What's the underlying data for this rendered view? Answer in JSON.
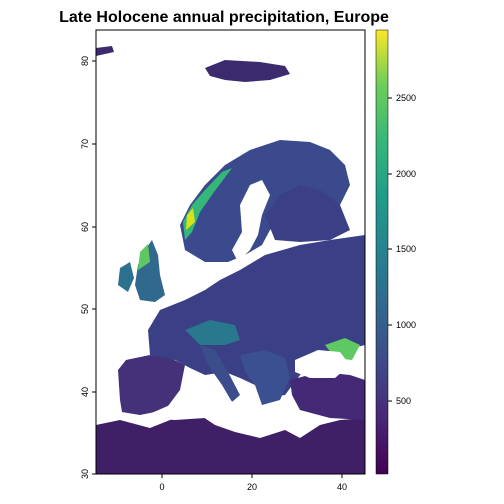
{
  "chart_data": {
    "type": "heatmap",
    "title": "Late Holocene annual precipitation, Europe",
    "xlabel": "",
    "ylabel": "",
    "x_ticks": [
      "0",
      "20",
      "40"
    ],
    "y_ticks": [
      "30",
      "40",
      "50",
      "60",
      "70",
      "80"
    ],
    "xlim": [
      -15,
      45
    ],
    "ylim": [
      30,
      84
    ],
    "legend": {
      "ticks": [
        "500",
        "1000",
        "1500",
        "2000",
        "2500"
      ],
      "range": [
        0,
        2950
      ],
      "colors": [
        "#440154",
        "#3b528b",
        "#21918c",
        "#5ec962",
        "#fde725"
      ]
    }
  }
}
